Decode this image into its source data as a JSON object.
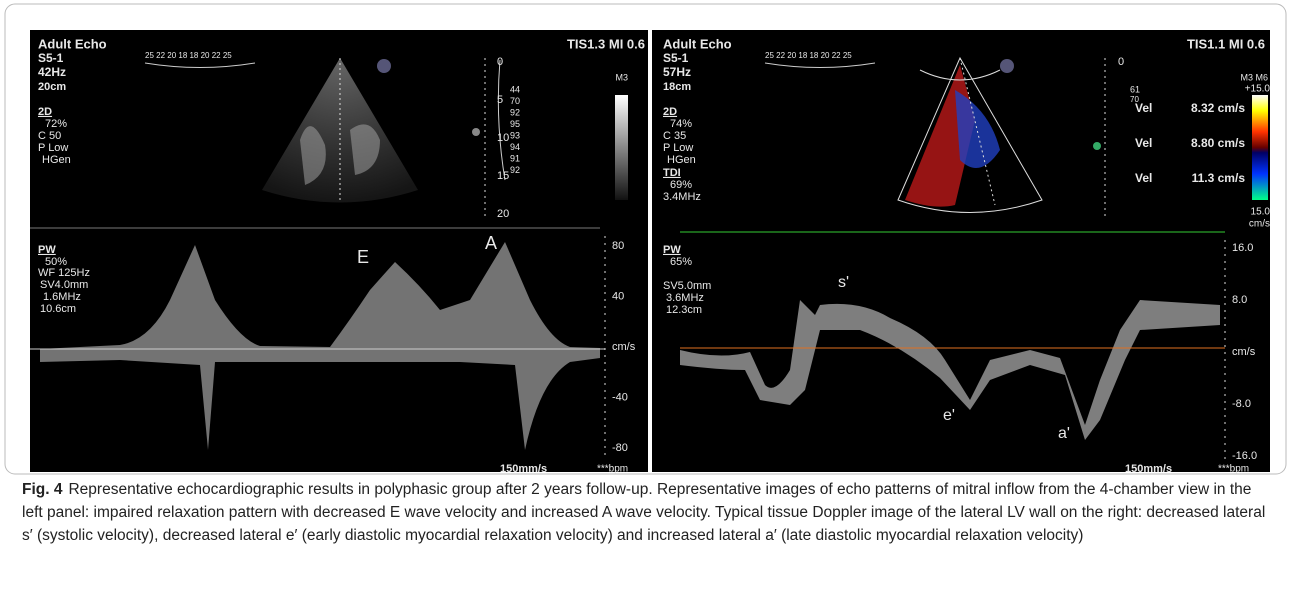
{
  "figure": {
    "left_panel": {
      "mode": "Adult Echo",
      "probe": "S5-1",
      "frame_rate": "42Hz",
      "depth": "20cm",
      "image_mode": "2D",
      "gain": "72%",
      "compress": "C 50",
      "power": "P Low",
      "harmonic": "HGen",
      "safety": "TIS1.3  MI 0.6",
      "tgc": "25 22 20 18 18 20 22 25",
      "map": "M3",
      "depth_ticks": [
        "0",
        "5",
        "10",
        "15",
        "20"
      ],
      "tgc_values": [
        "44",
        "70",
        "92",
        "95",
        "93",
        "94",
        "91",
        "92"
      ],
      "doppler": {
        "mode": "PW",
        "gain": "50%",
        "filter": "WF 125Hz",
        "sample_volume": "SV4.0mm",
        "frequency": "1.6MHz",
        "gate_depth": "10.6cm",
        "wave_labels": [
          "E",
          "A"
        ],
        "velocity_ticks": [
          "80",
          "40",
          "cm/s",
          "-40",
          "-80"
        ],
        "sweep": "150mm/s",
        "heart_rate": "***bpm"
      }
    },
    "right_panel": {
      "mode": "Adult Echo",
      "probe": "S5-1",
      "frame_rate": "57Hz",
      "depth": "18cm",
      "image_mode": "2D",
      "gain": "74%",
      "compress": "C 35",
      "power": "P Low",
      "harmonic": "HGen",
      "tdi": "TDI",
      "tdi_gain": "69%",
      "tdi_frequency": "3.4MHz",
      "safety": "TIS1.1  MI 0.6",
      "tgc": "25 22 20 18 18 20 22 25",
      "map": "M3 M6",
      "scale_max": "+15.0",
      "scale_min": "15.0",
      "scale_unit": "cm/s",
      "depth_marks": [
        "0",
        "61",
        "70"
      ],
      "measurements": [
        {
          "label": "Vel",
          "value": "8.32 cm/s"
        },
        {
          "label": "Vel",
          "value": "8.80 cm/s"
        },
        {
          "label": "Vel",
          "value": "11.3 cm/s"
        }
      ],
      "doppler": {
        "mode": "PW",
        "gain": "65%",
        "sample_volume": "SV5.0mm",
        "frequency": "3.6MHz",
        "gate_depth": "12.3cm",
        "wave_labels": [
          "s'",
          "e'",
          "a'"
        ],
        "velocity_ticks": [
          "16.0",
          "8.0",
          "cm/s",
          "-8.0",
          "-16.0"
        ],
        "sweep": "150mm/s",
        "heart_rate": "***bpm"
      }
    }
  },
  "caption": {
    "label": "Fig. 4",
    "text": "Representative echocardiographic results in polyphasic group after 2 years follow-up. Representative images of echo patterns of mitral inflow from the 4-chamber view in the left panel: impaired relaxation pattern with decreased E wave velocity and increased A wave velocity. Typical tissue Doppler image of the lateral LV wall on the right: decreased lateral s′ (systolic velocity), decreased lateral e′ (early diastolic myocardial relaxation velocity) and increased lateral a′ (late diastolic myocardial relaxation velocity)"
  }
}
